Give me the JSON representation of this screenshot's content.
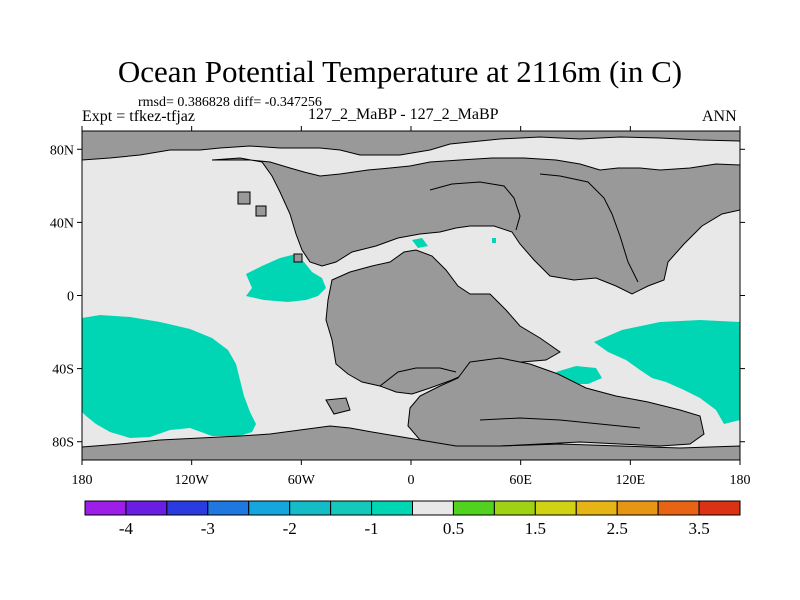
{
  "header": {
    "title": "Ocean Potential Temperature at 2116m (in C)",
    "stats": "rmsd= 0.386828 diff= -0.347256",
    "expt": "Expt = tfkez-tfjaz",
    "subtitle": "127_2_MaBP - 127_2_MaBP",
    "season": "ANN"
  },
  "map": {
    "projection": "cylindrical equidistant",
    "lon_range": [
      -180,
      180
    ],
    "lat_range": [
      -90,
      90
    ],
    "x_ticks": [
      {
        "lon": -180,
        "label": "180"
      },
      {
        "lon": -120,
        "label": "120W"
      },
      {
        "lon": -60,
        "label": "60W"
      },
      {
        "lon": 0,
        "label": "0"
      },
      {
        "lon": 60,
        "label": "60E"
      },
      {
        "lon": 120,
        "label": "120E"
      },
      {
        "lon": 180,
        "label": "180"
      }
    ],
    "y_ticks": [
      {
        "lat": 80,
        "label": "80N"
      },
      {
        "lat": 40,
        "label": "40N"
      },
      {
        "lat": 0,
        "label": "0"
      },
      {
        "lat": -40,
        "label": "40S"
      },
      {
        "lat": -80,
        "label": "80S"
      }
    ],
    "colors": {
      "land": "#999999",
      "ocean_near_zero": "#e8e8e8",
      "anomaly_minus_0_5": "#00d6b4"
    }
  },
  "colorbar": {
    "colors": [
      "#9c1ee8",
      "#6a1ee4",
      "#2a3ce0",
      "#1e78e0",
      "#14a6dc",
      "#14bcc8",
      "#14c8bc",
      "#00d6b4",
      "#e8e8e8",
      "#50d21e",
      "#a0d214",
      "#d2d214",
      "#e6b414",
      "#e69614",
      "#e66414",
      "#dc3214"
    ],
    "labels": [
      "-4",
      "-3",
      "-2",
      "-1",
      "0.5",
      "1.5",
      "2.5",
      "3.5"
    ]
  }
}
